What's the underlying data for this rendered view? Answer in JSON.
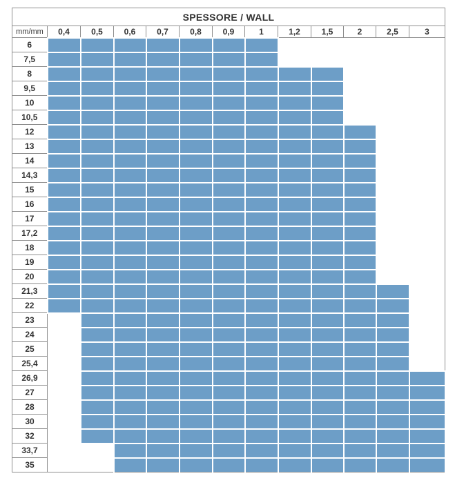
{
  "title": "SPESSORE / WALL",
  "unit_label": "mm/mm",
  "columns": [
    "0,4",
    "0,5",
    "0,6",
    "0,7",
    "0,8",
    "0,9",
    "1",
    "1,2",
    "1,5",
    "2",
    "2,5",
    "3"
  ],
  "availability_color": "#6d9ec7",
  "rows": [
    {
      "diameter": "6",
      "available": [
        0,
        1,
        2,
        3,
        4,
        5,
        6
      ]
    },
    {
      "diameter": "7,5",
      "available": [
        0,
        1,
        2,
        3,
        4,
        5,
        6
      ]
    },
    {
      "diameter": "8",
      "available": [
        0,
        1,
        2,
        3,
        4,
        5,
        6,
        7,
        8
      ]
    },
    {
      "diameter": "9,5",
      "available": [
        0,
        1,
        2,
        3,
        4,
        5,
        6,
        7,
        8
      ]
    },
    {
      "diameter": "10",
      "available": [
        0,
        1,
        2,
        3,
        4,
        5,
        6,
        7,
        8
      ]
    },
    {
      "diameter": "10,5",
      "available": [
        0,
        1,
        2,
        3,
        4,
        5,
        6,
        7,
        8
      ]
    },
    {
      "diameter": "12",
      "available": [
        0,
        1,
        2,
        3,
        4,
        5,
        6,
        7,
        8,
        9
      ]
    },
    {
      "diameter": "13",
      "available": [
        0,
        1,
        2,
        3,
        4,
        5,
        6,
        7,
        8,
        9
      ]
    },
    {
      "diameter": "14",
      "available": [
        0,
        1,
        2,
        3,
        4,
        5,
        6,
        7,
        8,
        9
      ]
    },
    {
      "diameter": "14,3",
      "available": [
        0,
        1,
        2,
        3,
        4,
        5,
        6,
        7,
        8,
        9
      ]
    },
    {
      "diameter": "15",
      "available": [
        0,
        1,
        2,
        3,
        4,
        5,
        6,
        7,
        8,
        9
      ]
    },
    {
      "diameter": "16",
      "available": [
        0,
        1,
        2,
        3,
        4,
        5,
        6,
        7,
        8,
        9
      ]
    },
    {
      "diameter": "17",
      "available": [
        0,
        1,
        2,
        3,
        4,
        5,
        6,
        7,
        8,
        9
      ]
    },
    {
      "diameter": "17,2",
      "available": [
        0,
        1,
        2,
        3,
        4,
        5,
        6,
        7,
        8,
        9
      ]
    },
    {
      "diameter": "18",
      "available": [
        0,
        1,
        2,
        3,
        4,
        5,
        6,
        7,
        8,
        9
      ]
    },
    {
      "diameter": "19",
      "available": [
        0,
        1,
        2,
        3,
        4,
        5,
        6,
        7,
        8,
        9
      ]
    },
    {
      "diameter": "20",
      "available": [
        0,
        1,
        2,
        3,
        4,
        5,
        6,
        7,
        8,
        9
      ]
    },
    {
      "diameter": "21,3",
      "available": [
        0,
        1,
        2,
        3,
        4,
        5,
        6,
        7,
        8,
        9,
        10
      ]
    },
    {
      "diameter": "22",
      "available": [
        0,
        1,
        2,
        3,
        4,
        5,
        6,
        7,
        8,
        9,
        10
      ]
    },
    {
      "diameter": "23",
      "available": [
        1,
        2,
        3,
        4,
        5,
        6,
        7,
        8,
        9,
        10
      ]
    },
    {
      "diameter": "24",
      "available": [
        1,
        2,
        3,
        4,
        5,
        6,
        7,
        8,
        9,
        10
      ]
    },
    {
      "diameter": "25",
      "available": [
        1,
        2,
        3,
        4,
        5,
        6,
        7,
        8,
        9,
        10
      ]
    },
    {
      "diameter": "25,4",
      "available": [
        1,
        2,
        3,
        4,
        5,
        6,
        7,
        8,
        9,
        10
      ]
    },
    {
      "diameter": "26,9",
      "available": [
        1,
        2,
        3,
        4,
        5,
        6,
        7,
        8,
        9,
        10,
        11
      ]
    },
    {
      "diameter": "27",
      "available": [
        1,
        2,
        3,
        4,
        5,
        6,
        7,
        8,
        9,
        10,
        11
      ]
    },
    {
      "diameter": "28",
      "available": [
        1,
        2,
        3,
        4,
        5,
        6,
        7,
        8,
        9,
        10,
        11
      ]
    },
    {
      "diameter": "30",
      "available": [
        1,
        2,
        3,
        4,
        5,
        6,
        7,
        8,
        9,
        10,
        11
      ]
    },
    {
      "diameter": "32",
      "available": [
        1,
        2,
        3,
        4,
        5,
        6,
        7,
        8,
        9,
        10,
        11
      ]
    },
    {
      "diameter": "33,7",
      "available": [
        2,
        3,
        4,
        5,
        6,
        7,
        8,
        9,
        10,
        11
      ]
    },
    {
      "diameter": "35",
      "available": [
        2,
        3,
        4,
        5,
        6,
        7,
        8,
        9,
        10,
        11
      ]
    }
  ]
}
